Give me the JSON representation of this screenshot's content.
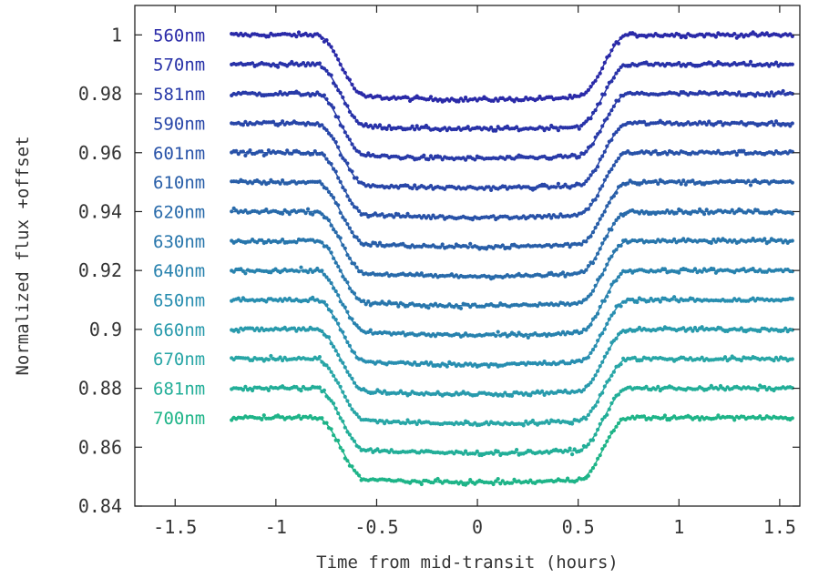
{
  "chart_data": {
    "type": "line",
    "title": "",
    "xlabel": "Time from mid-transit (hours)",
    "ylabel": "Normalized flux +offset",
    "xlim": [
      -1.7,
      1.6
    ],
    "ylim": [
      0.84,
      1.01
    ],
    "xticks": [
      -1.5,
      -1,
      -0.5,
      0,
      0.5,
      1,
      1.5
    ],
    "xtick_labels": [
      "-1.5",
      "-1",
      "-0.5",
      "0",
      "0.5",
      "1",
      "1.5"
    ],
    "yticks": [
      0.84,
      0.86,
      0.88,
      0.9,
      0.92,
      0.94,
      0.96,
      0.98,
      1
    ],
    "ytick_labels": [
      "0.84",
      "0.86",
      "0.88",
      "0.9",
      "0.92",
      "0.94",
      "0.96",
      "0.98",
      "1"
    ],
    "grid": false,
    "legend": "none",
    "transit": {
      "t_start": -0.8,
      "t_full_in": -0.55,
      "t_full_out": 0.5,
      "t_end": 0.75,
      "depth": 0.021,
      "observed_from": -1.22,
      "observed_to": 1.57
    },
    "series": [
      {
        "name": "560nm",
        "baseline": 1.0,
        "color": "#2a2aa8"
      },
      {
        "name": "570nm",
        "baseline": 0.99,
        "color": "#2832a8"
      },
      {
        "name": "581nm",
        "baseline": 0.98,
        "color": "#283aa8"
      },
      {
        "name": "590nm",
        "baseline": 0.97,
        "color": "#2846a8"
      },
      {
        "name": "601nm",
        "baseline": 0.96,
        "color": "#2852a8"
      },
      {
        "name": "610nm",
        "baseline": 0.95,
        "color": "#285ea8"
      },
      {
        "name": "620nm",
        "baseline": 0.94,
        "color": "#286aaa"
      },
      {
        "name": "630nm",
        "baseline": 0.93,
        "color": "#2876ac"
      },
      {
        "name": "640nm",
        "baseline": 0.92,
        "color": "#2882ae"
      },
      {
        "name": "650nm",
        "baseline": 0.91,
        "color": "#288eb0"
      },
      {
        "name": "660nm",
        "baseline": 0.9,
        "color": "#289aac"
      },
      {
        "name": "670nm",
        "baseline": 0.89,
        "color": "#28a6a6"
      },
      {
        "name": "681nm",
        "baseline": 0.88,
        "color": "#22ae98"
      },
      {
        "name": "700nm",
        "baseline": 0.87,
        "color": "#1eb488"
      }
    ]
  }
}
